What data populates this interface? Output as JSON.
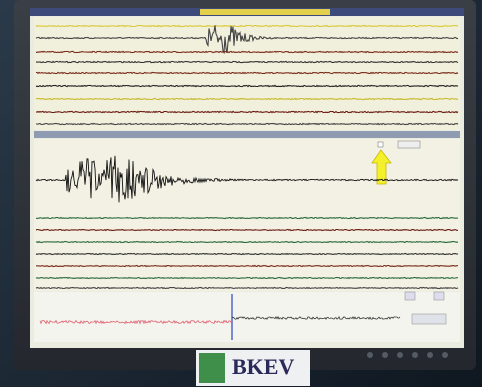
{
  "logo": {
    "text": "BKEV"
  }
}
